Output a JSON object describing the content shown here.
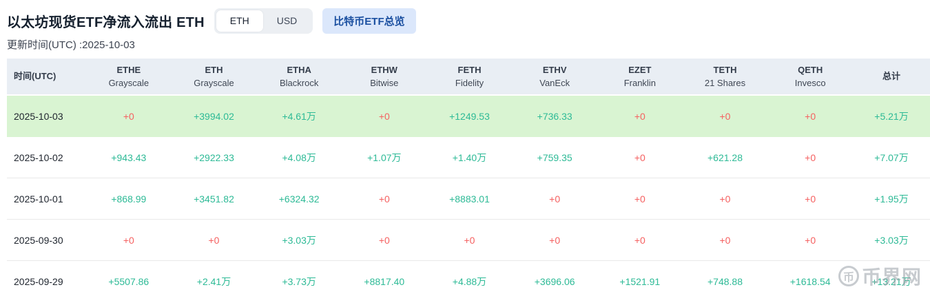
{
  "header": {
    "title": "以太坊现货ETF净流入流出 ETH",
    "toggle": {
      "options": [
        "ETH",
        "USD"
      ],
      "selected": "ETH"
    },
    "btc_overview_button": "比特币ETF总览",
    "update_time": "更新时间(UTC) :2025-10-03"
  },
  "table": {
    "columns": [
      {
        "ticker": "时间(UTC)",
        "company": ""
      },
      {
        "ticker": "ETHE",
        "company": "Grayscale"
      },
      {
        "ticker": "ETH",
        "company": "Grayscale"
      },
      {
        "ticker": "ETHA",
        "company": "Blackrock"
      },
      {
        "ticker": "ETHW",
        "company": "Bitwise"
      },
      {
        "ticker": "FETH",
        "company": "Fidelity"
      },
      {
        "ticker": "ETHV",
        "company": "VanEck"
      },
      {
        "ticker": "EZET",
        "company": "Franklin"
      },
      {
        "ticker": "TETH",
        "company": "21 Shares"
      },
      {
        "ticker": "QETH",
        "company": "Invesco"
      },
      {
        "ticker": "总计",
        "company": ""
      }
    ],
    "rows": [
      {
        "date": "2025-10-03",
        "highlighted": true,
        "values": [
          "+0",
          "+3994.02",
          "+4.61万",
          "+0",
          "+1249.53",
          "+736.33",
          "+0",
          "+0",
          "+0",
          "+5.21万"
        ]
      },
      {
        "date": "2025-10-02",
        "highlighted": false,
        "values": [
          "+943.43",
          "+2922.33",
          "+4.08万",
          "+1.07万",
          "+1.40万",
          "+759.35",
          "+0",
          "+621.28",
          "+0",
          "+7.07万"
        ]
      },
      {
        "date": "2025-10-01",
        "highlighted": false,
        "values": [
          "+868.99",
          "+3451.82",
          "+6324.32",
          "+0",
          "+8883.01",
          "+0",
          "+0",
          "+0",
          "+0",
          "+1.95万"
        ]
      },
      {
        "date": "2025-09-30",
        "highlighted": false,
        "values": [
          "+0",
          "+0",
          "+3.03万",
          "+0",
          "+0",
          "+0",
          "+0",
          "+0",
          "+0",
          "+3.03万"
        ]
      },
      {
        "date": "2025-09-29",
        "highlighted": false,
        "values": [
          "+5507.86",
          "+2.41万",
          "+3.73万",
          "+8817.40",
          "+4.88万",
          "+3696.06",
          "+1521.91",
          "+748.88",
          "+1618.54",
          "+13.21万"
        ]
      }
    ]
  },
  "colors": {
    "positive_text": "#2dba96",
    "zero_text": "#f56060",
    "highlight_row_bg": "#d9f4d2",
    "header_row_bg": "#e9eef4",
    "toggle_bg": "#eceff3",
    "btc_button_bg": "#dbe7fb",
    "btc_button_fg": "#1a4fa0"
  },
  "watermark": {
    "text": "币界网",
    "icon_char": "币"
  }
}
